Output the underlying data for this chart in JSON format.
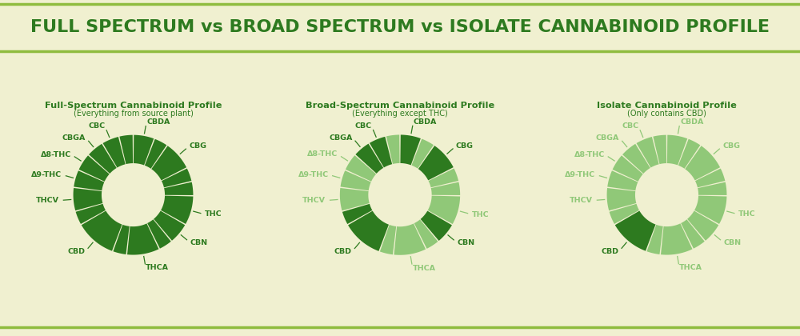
{
  "title": "FULL SPECTRUM vs BROAD SPECTRUM vs ISOLATE CANNABINOID PROFILE",
  "title_color": "#2d7a1f",
  "bg_color": "#f0f0d0",
  "border_color": "#8fbc3f",
  "charts": [
    {
      "title": "Full-Spectrum Cannabinoid Profile",
      "subtitle": "(Everything from source plant)",
      "segments": [
        {
          "label": "CBDA",
          "size": 1.8,
          "color": "#2d7a1f"
        },
        {
          "label": "",
          "size": 1.2,
          "color": "#2d7a1f"
        },
        {
          "label": "CBG",
          "size": 2.5,
          "color": "#2d7a1f"
        },
        {
          "label": "",
          "size": 1.2,
          "color": "#2d7a1f"
        },
        {
          "label": "",
          "size": 1.2,
          "color": "#2d7a1f"
        },
        {
          "label": "THC",
          "size": 2.5,
          "color": "#2d7a1f"
        },
        {
          "label": "CBN",
          "size": 1.8,
          "color": "#2d7a1f"
        },
        {
          "label": "",
          "size": 1.2,
          "color": "#2d7a1f"
        },
        {
          "label": "THCA",
          "size": 2.8,
          "color": "#2d7a1f"
        },
        {
          "label": "",
          "size": 1.2,
          "color": "#2d7a1f"
        },
        {
          "label": "CBD",
          "size": 3.5,
          "color": "#2d7a1f"
        },
        {
          "label": "",
          "size": 1.2,
          "color": "#2d7a1f"
        },
        {
          "label": "THCV",
          "size": 2.0,
          "color": "#2d7a1f"
        },
        {
          "label": "Δ9-THC",
          "size": 1.5,
          "color": "#2d7a1f"
        },
        {
          "label": "Δ8-THC",
          "size": 1.5,
          "color": "#2d7a1f"
        },
        {
          "label": "CBGA",
          "size": 1.5,
          "color": "#2d7a1f"
        },
        {
          "label": "CBC",
          "size": 1.5,
          "color": "#2d7a1f"
        },
        {
          "label": "",
          "size": 1.2,
          "color": "#2d7a1f"
        }
      ]
    },
    {
      "title": "Broad-Spectrum Cannabinoid Profile",
      "subtitle": "(Everything except THC)",
      "segments": [
        {
          "label": "CBDA",
          "size": 1.8,
          "color": "#2d7a1f"
        },
        {
          "label": "",
          "size": 1.2,
          "color": "#90c878"
        },
        {
          "label": "CBG",
          "size": 2.5,
          "color": "#2d7a1f"
        },
        {
          "label": "",
          "size": 1.2,
          "color": "#90c878"
        },
        {
          "label": "",
          "size": 1.2,
          "color": "#90c878"
        },
        {
          "label": "THC",
          "size": 2.5,
          "color": "#90c878"
        },
        {
          "label": "CBN",
          "size": 1.8,
          "color": "#2d7a1f"
        },
        {
          "label": "",
          "size": 1.2,
          "color": "#90c878"
        },
        {
          "label": "THCA",
          "size": 2.8,
          "color": "#90c878"
        },
        {
          "label": "",
          "size": 1.2,
          "color": "#90c878"
        },
        {
          "label": "CBD",
          "size": 3.5,
          "color": "#2d7a1f"
        },
        {
          "label": "",
          "size": 1.2,
          "color": "#2d7a1f"
        },
        {
          "label": "THCV",
          "size": 2.0,
          "color": "#90c878"
        },
        {
          "label": "Δ9-THC",
          "size": 1.5,
          "color": "#90c878"
        },
        {
          "label": "Δ8-THC",
          "size": 1.5,
          "color": "#90c878"
        },
        {
          "label": "CBGA",
          "size": 1.5,
          "color": "#2d7a1f"
        },
        {
          "label": "CBC",
          "size": 1.5,
          "color": "#2d7a1f"
        },
        {
          "label": "",
          "size": 1.2,
          "color": "#90c878"
        }
      ]
    },
    {
      "title": "Isolate Cannabinoid Profile",
      "subtitle": "(Only contains CBD)",
      "segments": [
        {
          "label": "CBDA",
          "size": 1.8,
          "color": "#90c878"
        },
        {
          "label": "",
          "size": 1.2,
          "color": "#90c878"
        },
        {
          "label": "CBG",
          "size": 2.5,
          "color": "#90c878"
        },
        {
          "label": "",
          "size": 1.2,
          "color": "#90c878"
        },
        {
          "label": "",
          "size": 1.2,
          "color": "#90c878"
        },
        {
          "label": "THC",
          "size": 2.5,
          "color": "#90c878"
        },
        {
          "label": "CBN",
          "size": 1.8,
          "color": "#90c878"
        },
        {
          "label": "",
          "size": 1.2,
          "color": "#90c878"
        },
        {
          "label": "THCA",
          "size": 2.8,
          "color": "#90c878"
        },
        {
          "label": "",
          "size": 1.2,
          "color": "#90c878"
        },
        {
          "label": "CBD",
          "size": 3.5,
          "color": "#2d7a1f"
        },
        {
          "label": "",
          "size": 1.2,
          "color": "#90c878"
        },
        {
          "label": "THCV",
          "size": 2.0,
          "color": "#90c878"
        },
        {
          "label": "Δ9-THC",
          "size": 1.5,
          "color": "#90c878"
        },
        {
          "label": "Δ8-THC",
          "size": 1.5,
          "color": "#90c878"
        },
        {
          "label": "CBGA",
          "size": 1.5,
          "color": "#90c878"
        },
        {
          "label": "CBC",
          "size": 1.5,
          "color": "#90c878"
        },
        {
          "label": "",
          "size": 1.2,
          "color": "#90c878"
        }
      ]
    }
  ]
}
